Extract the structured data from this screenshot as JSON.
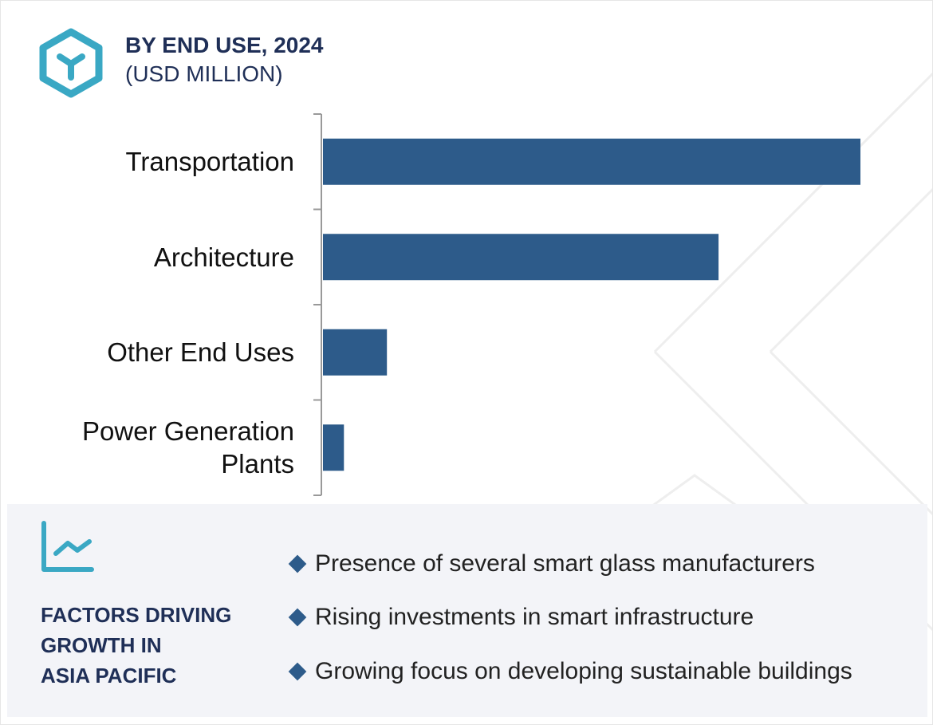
{
  "header": {
    "title": "BY END USE, 2024",
    "subtitle": "(USD MILLION)",
    "icon": "cube-icon"
  },
  "chart_data": {
    "type": "bar",
    "orientation": "horizontal",
    "title": "BY END USE, 2024",
    "subtitle": "(USD MILLION)",
    "categories": [
      "Transportation",
      "Architecture",
      "Other End Uses",
      "Power Generation Plants"
    ],
    "category_lines": [
      [
        "Transportation"
      ],
      [
        "Architecture"
      ],
      [
        "Other End Uses"
      ],
      [
        "Power Generation",
        "Plants"
      ]
    ],
    "values": [
      100,
      73.6,
      11.9,
      3.9
    ],
    "note_values": "relative, no value axis printed",
    "xlim": [
      0,
      100
    ],
    "grid": false,
    "bar_color": "#2d5b8a"
  },
  "panel": {
    "icon": "trend-chart-icon",
    "heading_lines": [
      "FACTORS DRIVING",
      "GROWTH IN",
      "ASIA PACIFIC"
    ],
    "bullets": [
      "Presence of several smart glass manufacturers",
      "Rising investments in smart infrastructure",
      "Growing focus on developing sustainable buildings"
    ],
    "accent": "#3aa8c4"
  }
}
